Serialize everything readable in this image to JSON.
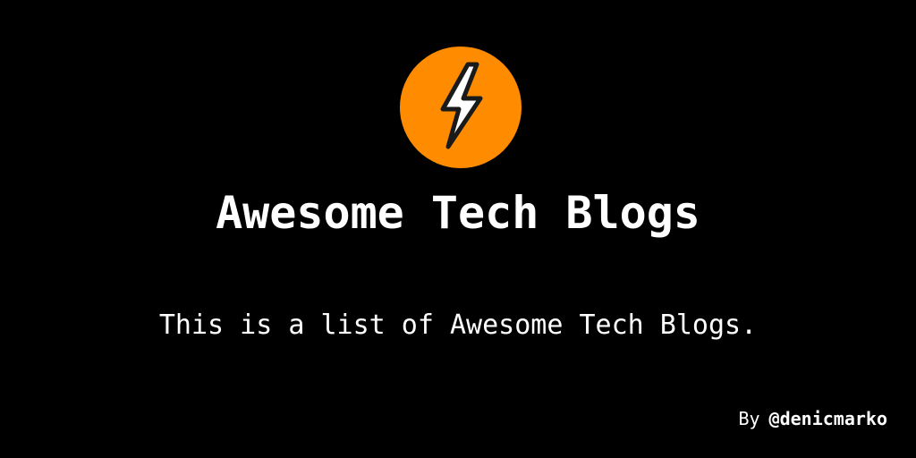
{
  "logo": {
    "icon": "lightning-bolt-icon",
    "circle_color": "#FF8C00",
    "bolt_color": "#FFFFFF",
    "outline_color": "#1A1A1A"
  },
  "title": "Awesome Tech Blogs",
  "subtitle": "This is a list of Awesome Tech Blogs.",
  "byline": {
    "by": "By",
    "handle": "@denicmarko"
  },
  "colors": {
    "background": "#000000",
    "text": "#FFFFFF"
  }
}
